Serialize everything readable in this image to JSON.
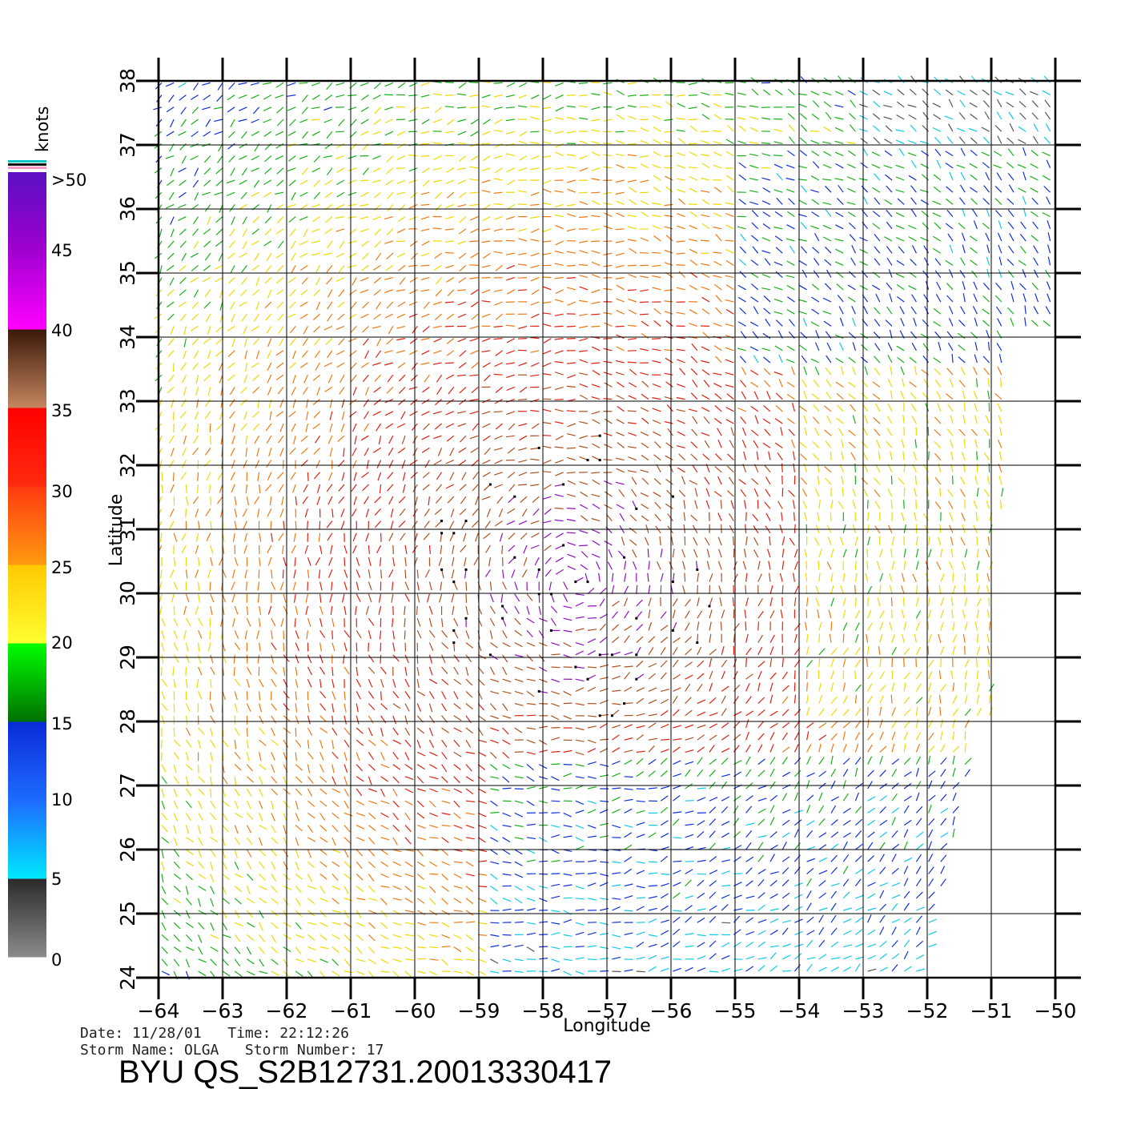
{
  "map": {
    "lon_range": [
      -64,
      -50
    ],
    "lat_range": [
      24,
      38
    ],
    "lon_ticks": [
      "-64",
      "-63",
      "-62",
      "-61",
      "-60",
      "-59",
      "-58",
      "-57",
      "-56",
      "-55",
      "-54",
      "-53",
      "-52",
      "-51",
      "-50"
    ],
    "lat_ticks": [
      "24",
      "25",
      "26",
      "27",
      "28",
      "29",
      "30",
      "31",
      "32",
      "33",
      "34",
      "35",
      "36",
      "37",
      "38"
    ],
    "xlabel": "Longitude",
    "ylabel": "Latitude",
    "grid": true,
    "storm_center": {
      "lon": -57.5,
      "lat": 30.2
    }
  },
  "legend": {
    "title": "knots",
    "labels": [
      ">50",
      "45",
      "40",
      "35",
      "30",
      "25",
      "20",
      "15",
      "10",
      "5",
      "0"
    ],
    "bands": [
      {
        "from": 0,
        "to": 5,
        "top": "#2a2a2a",
        "bottom": "#8c8c8c"
      },
      {
        "from": 5,
        "to": 10,
        "top": "#1e6bff",
        "bottom": "#00e8ff"
      },
      {
        "from": 10,
        "to": 15,
        "top": "#0a2ad8",
        "bottom": "#1e6bff"
      },
      {
        "from": 15,
        "to": 20,
        "top": "#00ff00",
        "bottom": "#007000"
      },
      {
        "from": 20,
        "to": 25,
        "top": "#ffc800",
        "bottom": "#ffff30"
      },
      {
        "from": 25,
        "to": 30,
        "top": "#ff3a10",
        "bottom": "#ff9a10"
      },
      {
        "from": 30,
        "to": 35,
        "top": "#ff0000",
        "bottom": "#ff2a10"
      },
      {
        "from": 35,
        "to": 40,
        "top": "#3a1808",
        "bottom": "#c48660"
      },
      {
        "from": 40,
        "to": 45,
        "top": "#a000d0",
        "bottom": "#ff00ff"
      },
      {
        "from": 45,
        "to": 50,
        "top": "#5a10c0",
        "bottom": "#a000d0"
      }
    ],
    "cap_colors": [
      "#00c8c8",
      "#111111",
      "#ff9ac8"
    ]
  },
  "meta": {
    "line1": "Date: 11/28/01   Time: 22:12:26",
    "line2": "Storm Name: OLGA   Storm Number: 17",
    "title": "BYU QS_S2B12731.20013330417"
  }
}
